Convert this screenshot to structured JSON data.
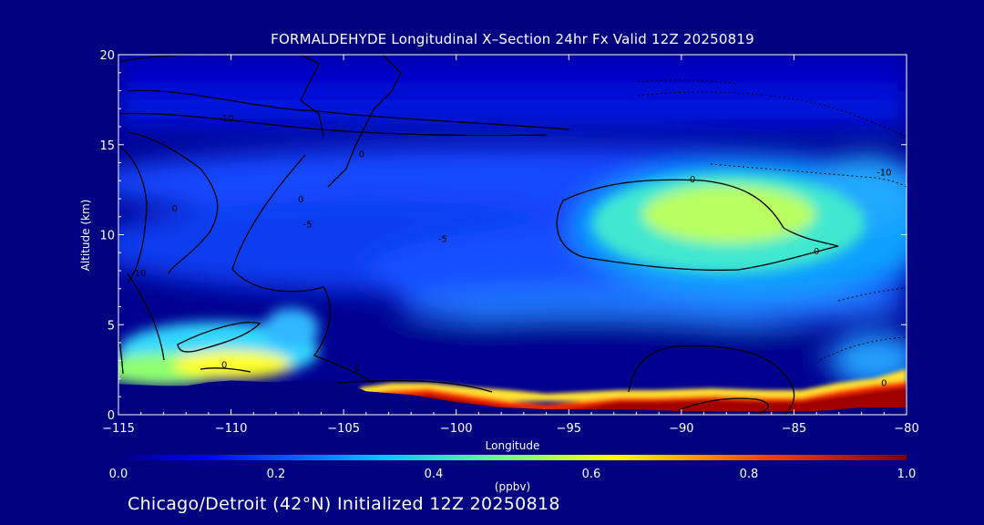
{
  "chart_data": {
    "type": "heatmap",
    "title": "FORMALDEHYDE Longitudinal X–Section 24hr  Fx Valid 12Z 20250819",
    "xlabel": "Longitude",
    "ylabel": "Altitude (km)",
    "xlim": [
      -115,
      -80
    ],
    "ylim": [
      0,
      20
    ],
    "x_ticks": [
      -115,
      -110,
      -105,
      -100,
      -95,
      -90,
      -85,
      -80
    ],
    "x_tick_labels": [
      "−115",
      "−110",
      "−105",
      "−100",
      "−95",
      "−90",
      "−85",
      "−80"
    ],
    "y_ticks": [
      0,
      5,
      10,
      15,
      20
    ],
    "y_tick_labels": [
      "0",
      "5",
      "10",
      "15",
      "20"
    ],
    "colorbar": {
      "label": "(ppbv)",
      "range": [
        0.0,
        1.0
      ],
      "ticks": [
        0.0,
        0.2,
        0.4,
        0.6,
        0.8,
        1.0
      ],
      "tick_labels": [
        "0.0",
        "0.2",
        "0.4",
        "0.6",
        "0.8",
        "1.0"
      ],
      "colormap": "jet"
    },
    "terrain_km": [
      [
        -115,
        1.7
      ],
      [
        -113,
        1.6
      ],
      [
        -112,
        1.6
      ],
      [
        -111,
        1.8
      ],
      [
        -110,
        1.9
      ],
      [
        -108,
        1.8
      ],
      [
        -106,
        2.0
      ],
      [
        -105,
        1.8
      ],
      [
        -104,
        1.3
      ],
      [
        -102,
        1.1
      ],
      [
        -100,
        0.7
      ],
      [
        -98,
        0.4
      ],
      [
        -96,
        0.3
      ],
      [
        -94,
        0.3
      ],
      [
        -92,
        0.3
      ],
      [
        -90,
        0.2
      ],
      [
        -88,
        0.2
      ],
      [
        -86,
        0.2
      ],
      [
        -84,
        0.2
      ],
      [
        -82,
        0.4
      ],
      [
        -80,
        0.4
      ]
    ],
    "features": [
      {
        "description": "elevated formaldehyde plume aloft",
        "lon_range": [
          -93,
          -83
        ],
        "alt_range_km": [
          8.5,
          13
        ],
        "peak_ppbv": 0.58
      },
      {
        "description": "boundary-layer enhancement over western terrain",
        "lon_range": [
          -115,
          -105
        ],
        "alt_range_km": [
          2,
          5
        ],
        "peak_ppbv": 0.6
      },
      {
        "description": "surface layer high concentration",
        "lon_range": [
          -104,
          -80
        ],
        "alt_range_km": [
          0,
          1.5
        ],
        "peak_ppbv": 1.0
      }
    ],
    "contour_labels": [
      {
        "text": "-10",
        "lon": -110.2,
        "alt": 16.3
      },
      {
        "text": "0",
        "lon": -104.2,
        "alt": 14.3
      },
      {
        "text": "0",
        "lon": -112.5,
        "alt": 11.3
      },
      {
        "text": "0",
        "lon": -106.9,
        "alt": 11.8
      },
      {
        "text": "-10",
        "lon": -114.1,
        "alt": 7.7
      },
      {
        "text": "0",
        "lon": -110.3,
        "alt": 2.6
      },
      {
        "text": "0",
        "lon": -104.4,
        "alt": 2.4
      },
      {
        "text": "0",
        "lon": -89.5,
        "alt": 12.9
      },
      {
        "text": "0",
        "lon": -84.0,
        "alt": 8.9
      },
      {
        "text": "-10",
        "lon": -81.0,
        "alt": 13.3
      },
      {
        "text": "0",
        "lon": -81.0,
        "alt": 1.6
      },
      {
        "text": "-5",
        "lon": -106.6,
        "alt": 10.4
      },
      {
        "text": "-5",
        "lon": -100.6,
        "alt": 9.6
      }
    ]
  },
  "footer": "Chicago/Detroit (42°N) Initialized 12Z 20250818"
}
